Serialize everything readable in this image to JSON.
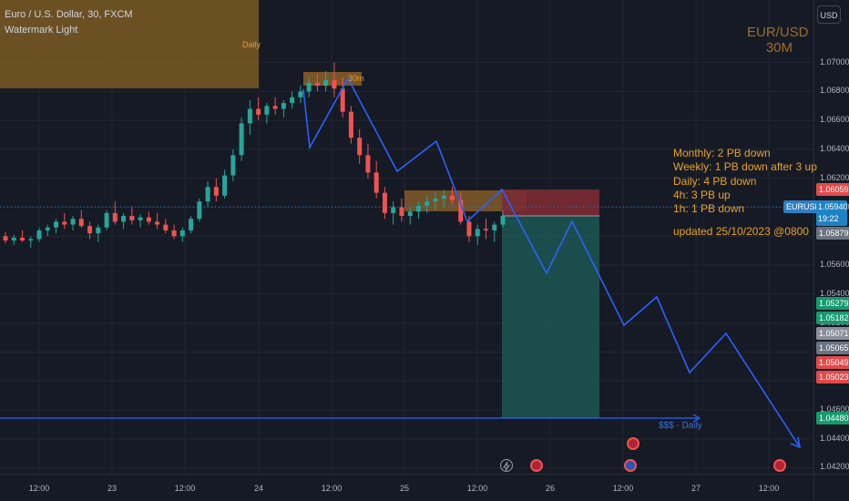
{
  "header": {
    "symbol_title": "Euro / U.S. Dollar, 30, FXCM",
    "watermark_label": "Watermark Light",
    "symbol_watermark": "EUR/USD",
    "interval_watermark": "30M"
  },
  "toolbar": {
    "currency_button": "USD"
  },
  "zones": {
    "daily_label": "Daily",
    "thirty_min_label": "30m"
  },
  "notes": [
    "Monthly: 2 PB down",
    "Weekly: 1 PB down after 3 up",
    "Daily: 4 PB down",
    "4h: 3 PB up",
    "1h: 1 PB down",
    "",
    "updated 25/10/2023 @0800"
  ],
  "liquidity_label": "$$$ - Daily",
  "price_axis": {
    "ticks": [
      "1.07000",
      "1.06800",
      "1.06600",
      "1.06400",
      "1.06200",
      "1.06000",
      "1.05800",
      "1.05600",
      "1.05400",
      "1.05200",
      "1.05000",
      "1.04800",
      "1.04600",
      "1.04400",
      "1.04200"
    ],
    "badges": {
      "stop_loss": "1.06059",
      "entry": "1.05879",
      "tp1": "1.05279",
      "tp2": "1.05182",
      "level_a": "1.05071",
      "level_b": "1.05065",
      "level_c": "1.05049",
      "level_d": "1.05023",
      "liquidity": "1.04480"
    },
    "symbol_badge": "EURUSD",
    "current_price": "1.05940",
    "countdown": "19:22"
  },
  "time_axis": {
    "ticks": [
      "12:00",
      "23",
      "12:00",
      "24",
      "12:00",
      "25",
      "12:00",
      "26",
      "12:00",
      "27",
      "12:00"
    ]
  },
  "colors": {
    "background": "#161a25",
    "bull": "#26a69a",
    "bear": "#ef5350",
    "projection": "#2962ff",
    "notes": "#e8a12a",
    "zone": "#9c6d2a",
    "profit_zone": "#1d5f5a",
    "loss_zone": "#7a2a33"
  },
  "chart_data": {
    "type": "candlestick",
    "symbol": "EUR/USD",
    "interval": "30",
    "price_range": [
      1.0414,
      1.0713
    ],
    "candles": [
      [
        0,
        1.058,
        1.0583,
        1.0575,
        1.0577
      ],
      [
        1,
        1.0577,
        1.0581,
        1.0574,
        1.0579
      ],
      [
        2,
        1.0579,
        1.0584,
        1.0576,
        1.0577
      ],
      [
        3,
        1.0577,
        1.058,
        1.0572,
        1.0578
      ],
      [
        4,
        1.0578,
        1.0586,
        1.0576,
        1.0584
      ],
      [
        5,
        1.0584,
        1.0588,
        1.058,
        1.0586
      ],
      [
        6,
        1.0586,
        1.0592,
        1.0582,
        1.059
      ],
      [
        7,
        1.059,
        1.0596,
        1.0585,
        1.0588
      ],
      [
        8,
        1.0588,
        1.0594,
        1.0584,
        1.0592
      ],
      [
        9,
        1.0592,
        1.0598,
        1.0586,
        1.0587
      ],
      [
        10,
        1.0587,
        1.059,
        1.0578,
        1.0582
      ],
      [
        11,
        1.0582,
        1.0588,
        1.0576,
        1.0586
      ],
      [
        12,
        1.0586,
        1.0598,
        1.0584,
        1.0596
      ],
      [
        13,
        1.0596,
        1.0604,
        1.0588,
        1.059
      ],
      [
        14,
        1.059,
        1.0596,
        1.0585,
        1.0594
      ],
      [
        15,
        1.0594,
        1.06,
        1.0588,
        1.0591
      ],
      [
        16,
        1.0591,
        1.0595,
        1.0586,
        1.0593
      ],
      [
        17,
        1.0593,
        1.0597,
        1.0588,
        1.059
      ],
      [
        18,
        1.059,
        1.0596,
        1.0585,
        1.0588
      ],
      [
        19,
        1.0588,
        1.0592,
        1.0582,
        1.0584
      ],
      [
        20,
        1.0584,
        1.0588,
        1.0578,
        1.058
      ],
      [
        21,
        1.058,
        1.0586,
        1.0576,
        1.0584
      ],
      [
        22,
        1.0584,
        1.0594,
        1.0582,
        1.0592
      ],
      [
        23,
        1.0592,
        1.0606,
        1.059,
        1.0604
      ],
      [
        24,
        1.0604,
        1.0618,
        1.06,
        1.0614
      ],
      [
        25,
        1.0614,
        1.062,
        1.0604,
        1.0608
      ],
      [
        26,
        1.0608,
        1.0626,
        1.0606,
        1.0622
      ],
      [
        27,
        1.0622,
        1.064,
        1.0618,
        1.0636
      ],
      [
        28,
        1.0636,
        1.0662,
        1.0632,
        1.0658
      ],
      [
        29,
        1.0658,
        1.0674,
        1.065,
        1.0668
      ],
      [
        30,
        1.0668,
        1.0676,
        1.066,
        1.0664
      ],
      [
        31,
        1.0664,
        1.0672,
        1.0658,
        1.067
      ],
      [
        32,
        1.067,
        1.0676,
        1.0664,
        1.0668
      ],
      [
        33,
        1.0668,
        1.0674,
        1.0662,
        1.0672
      ],
      [
        34,
        1.0672,
        1.068,
        1.0668,
        1.0676
      ],
      [
        35,
        1.0676,
        1.0684,
        1.0672,
        1.068
      ],
      [
        36,
        1.068,
        1.069,
        1.0676,
        1.0686
      ],
      [
        37,
        1.0686,
        1.0692,
        1.068,
        1.0684
      ],
      [
        38,
        1.0684,
        1.0694,
        1.068,
        1.0688
      ],
      [
        39,
        1.0688,
        1.07,
        1.0676,
        1.0682
      ],
      [
        40,
        1.0682,
        1.069,
        1.0662,
        1.0666
      ],
      [
        41,
        1.0666,
        1.067,
        1.0644,
        1.0648
      ],
      [
        42,
        1.0648,
        1.0654,
        1.063,
        1.0636
      ],
      [
        43,
        1.0636,
        1.0644,
        1.062,
        1.0624
      ],
      [
        44,
        1.0624,
        1.0632,
        1.0606,
        1.061
      ],
      [
        45,
        1.061,
        1.0614,
        1.0592,
        1.0596
      ],
      [
        46,
        1.0596,
        1.0604,
        1.0588,
        1.06
      ],
      [
        47,
        1.06,
        1.0606,
        1.059,
        1.0594
      ],
      [
        48,
        1.0594,
        1.06,
        1.0588,
        1.0597
      ],
      [
        49,
        1.0597,
        1.0604,
        1.0592,
        1.0601
      ],
      [
        50,
        1.0601,
        1.0608,
        1.0596,
        1.0604
      ],
      [
        51,
        1.0604,
        1.061,
        1.0598,
        1.0606
      ],
      [
        52,
        1.0606,
        1.0612,
        1.06,
        1.0608
      ],
      [
        53,
        1.0608,
        1.0614,
        1.0602,
        1.0605
      ],
      [
        54,
        1.0605,
        1.061,
        1.0588,
        1.059
      ],
      [
        55,
        1.059,
        1.0594,
        1.0576,
        1.058
      ],
      [
        56,
        1.058,
        1.0588,
        1.0574,
        1.0585
      ],
      [
        57,
        1.0585,
        1.0592,
        1.0578,
        1.0584
      ],
      [
        58,
        1.0584,
        1.059,
        1.0576,
        1.0588
      ],
      [
        59,
        1.0588,
        1.0598,
        1.0586,
        1.0594
      ]
    ],
    "projection_path": [
      [
        1.069,
        1.0682
      ],
      [
        1.064,
        1.065
      ],
      [
        1.068,
        1.0676
      ],
      [
        1.062,
        1.0626
      ],
      [
        1.064,
        1.0636
      ],
      [
        1.059,
        1.0596
      ],
      [
        1.0606,
        1.0602
      ],
      [
        1.056,
        1.0548
      ],
      [
        1.058,
        1.058
      ],
      [
        1.051,
        1.0512
      ],
      [
        1.053,
        1.053
      ],
      [
        1.048,
        1.0486
      ],
      [
        1.05,
        1.0496
      ],
      [
        1.043,
        1.0428
      ]
    ],
    "position": {
      "direction": "short",
      "entry": 1.05879,
      "stop": 1.06059,
      "target": 1.0448
    },
    "liquidity_level": 1.0448
  }
}
